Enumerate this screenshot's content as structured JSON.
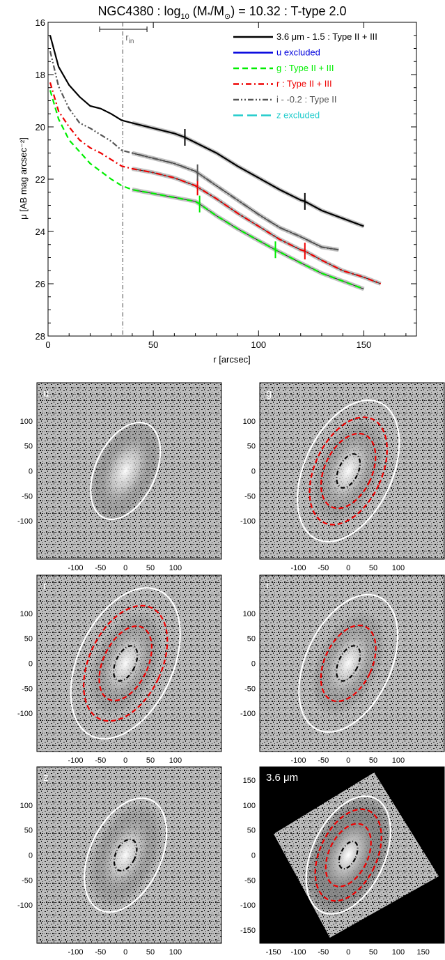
{
  "title": {
    "galaxy": "NGC4380",
    "text": " : log",
    "sub": "10",
    "mid": " (M",
    "star": "*",
    "slash": "/M",
    "sun": "⊙",
    "tail": ") = 10.32 : T-type 2.0"
  },
  "chart_data": [
    {
      "type": "line",
      "xlabel": "r [arcsec]",
      "ylabel": "μ [AB mag arcsec⁻²]",
      "xlim": [
        0,
        175
      ],
      "ylim": [
        28,
        16
      ],
      "y_inverted": true,
      "xticks": [
        0,
        50,
        100,
        150
      ],
      "yticks": [
        16,
        18,
        20,
        22,
        24,
        26,
        28
      ],
      "r_in": {
        "label": "r",
        "sub": "in",
        "value": 35.5,
        "err": [
          24.5,
          47
        ]
      },
      "legend_position": "top-right",
      "series": [
        {
          "name": "3.6 μm - 1.5 : Type II + III",
          "color": "#000000",
          "dash": "solid",
          "x": [
            1,
            5,
            10,
            15,
            20,
            25,
            30,
            35,
            40,
            50,
            60,
            65,
            70,
            80,
            90,
            100,
            110,
            120,
            122,
            130,
            140,
            150
          ],
          "y": [
            16.5,
            17.7,
            18.4,
            18.85,
            19.2,
            19.3,
            19.5,
            19.75,
            19.85,
            20.05,
            20.25,
            20.4,
            20.6,
            21.0,
            21.5,
            21.95,
            22.4,
            22.8,
            22.85,
            23.2,
            23.5,
            23.8
          ],
          "breaks": [
            65,
            122
          ]
        },
        {
          "name": "u excluded",
          "color": "#0000dd",
          "dash": "solid",
          "x": [],
          "y": [],
          "breaks": []
        },
        {
          "name": "g : Type II + III",
          "color": "#00ee00",
          "dash": "dashed",
          "x": [
            1,
            5,
            10,
            15,
            20,
            25,
            30,
            35,
            40,
            50,
            60,
            70,
            72,
            80,
            90,
            100,
            108,
            120,
            130,
            140,
            150
          ],
          "y": [
            18.6,
            19.7,
            20.5,
            20.95,
            21.4,
            21.7,
            22.0,
            22.25,
            22.4,
            22.55,
            22.7,
            22.85,
            22.95,
            23.4,
            23.9,
            24.35,
            24.7,
            25.2,
            25.6,
            25.9,
            26.2
          ],
          "breaks": [
            72,
            108
          ]
        },
        {
          "name": "r : Type II + III",
          "color": "#ee0000",
          "dash": "dashdot",
          "x": [
            1,
            5,
            10,
            15,
            20,
            25,
            30,
            35,
            40,
            50,
            60,
            70,
            80,
            90,
            100,
            110,
            120,
            122,
            130,
            140,
            150,
            158
          ],
          "y": [
            18.3,
            19.4,
            20.0,
            20.5,
            20.8,
            21.0,
            21.25,
            21.5,
            21.6,
            21.75,
            21.95,
            22.25,
            22.75,
            23.3,
            23.8,
            24.3,
            24.7,
            24.75,
            25.1,
            25.5,
            25.75,
            26.0
          ],
          "breaks": [
            71,
            122
          ]
        },
        {
          "name": "i - -0.2 : Type II",
          "color": "#555555",
          "dash": "dashdotdot",
          "x": [
            1,
            5,
            10,
            15,
            20,
            25,
            30,
            35,
            40,
            50,
            60,
            70,
            80,
            90,
            100,
            110,
            120,
            130,
            138
          ],
          "y": [
            17.1,
            18.45,
            19.3,
            19.85,
            20.05,
            20.3,
            20.55,
            20.9,
            21.0,
            21.2,
            21.4,
            21.7,
            22.25,
            22.8,
            23.35,
            23.85,
            24.2,
            24.6,
            24.7
          ],
          "breaks": [
            71
          ]
        },
        {
          "name": "z excluded",
          "color": "#22cccc",
          "dash": "longdash",
          "x": [],
          "y": [],
          "breaks": []
        }
      ]
    },
    {
      "type": "image-grid",
      "ticks": [
        "-100",
        "-50",
        "0",
        "50",
        "100"
      ],
      "panels": [
        {
          "label": "u",
          "ellipses": [
            "white"
          ],
          "dark_background": false
        },
        {
          "label": "g",
          "ellipses": [
            "white",
            "red",
            "red",
            "black"
          ],
          "dark_background": false
        },
        {
          "label": "r",
          "ellipses": [
            "white",
            "red",
            "red",
            "black"
          ],
          "dark_background": false
        },
        {
          "label": "i",
          "ellipses": [
            "white",
            "red",
            "black"
          ],
          "dark_background": false
        },
        {
          "label": "z",
          "ellipses": [
            "white",
            "black"
          ],
          "dark_background": false
        },
        {
          "label": "3.6 μm",
          "ellipses": [
            "white",
            "red",
            "red",
            "black"
          ],
          "dark_background": true,
          "ticks_y": [
            "150",
            "100",
            "50",
            "0",
            "-50",
            "-100",
            "-150"
          ],
          "ticks_x": [
            "-150",
            "-100",
            "-50",
            "0",
            "50",
            "100",
            "150"
          ]
        }
      ]
    }
  ]
}
